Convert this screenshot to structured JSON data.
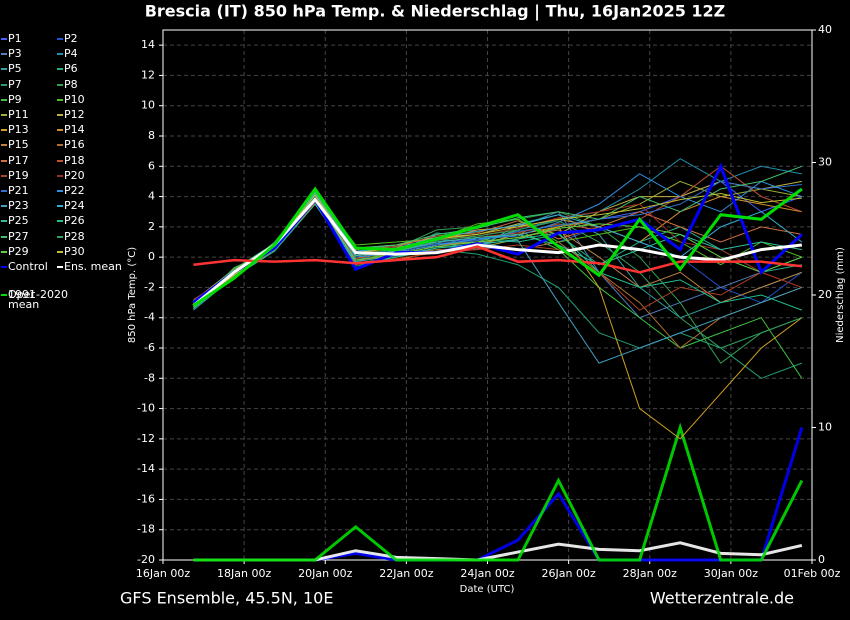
{
  "chart_data": {
    "type": "line",
    "title": "Brescia  (IT)  850 hPa Temp. & Niederschlag | Thu, 16Jan2025 12Z",
    "footer_left": "GFS Ensemble, 45.5N, 10E",
    "footer_right": "Wetterzentrale.de",
    "xlabel": "Date (UTC)",
    "ylabel": "850 hPa Temp. (°C)",
    "y2label": "Niederschlag (mm)",
    "xlim": [
      0,
      16
    ],
    "xticks": [
      {
        "value": 0,
        "label": "16Jan 00z"
      },
      {
        "value": 2,
        "label": "18Jan 00z"
      },
      {
        "value": 4,
        "label": "20Jan 00z"
      },
      {
        "value": 6,
        "label": "22Jan 00z"
      },
      {
        "value": 8,
        "label": "24Jan 00z"
      },
      {
        "value": 10,
        "label": "26Jan 00z"
      },
      {
        "value": 12,
        "label": "28Jan 00z"
      },
      {
        "value": 14,
        "label": "30Jan 00z"
      },
      {
        "value": 16,
        "label": "01Feb 00z"
      }
    ],
    "ylim": [
      -20,
      15
    ],
    "yticks": [
      -20,
      -18,
      -16,
      -14,
      -12,
      -10,
      -8,
      -6,
      -4,
      -2,
      0,
      2,
      4,
      6,
      8,
      10,
      12,
      14
    ],
    "y2lim": [
      0,
      40
    ],
    "y2ticks": [
      0,
      10,
      20,
      30,
      40
    ],
    "grid": true,
    "x": [
      0.75,
      1.75,
      2.75,
      3.75,
      4.75,
      5.75,
      6.75,
      7.75,
      8.75,
      9.75,
      10.75,
      11.75,
      12.75,
      13.75,
      14.75,
      15.75
    ],
    "series": [
      {
        "name": "P1",
        "color": "#4060ff",
        "values": [
          -3,
          -1.2,
          0.5,
          3.6,
          0.2,
          0.5,
          1,
          1.2,
          1.5,
          2,
          2.5,
          3,
          4,
          5,
          3,
          4
        ]
      },
      {
        "name": "P2",
        "color": "#2050d0",
        "values": [
          -3.3,
          -0.8,
          0.9,
          3.9,
          -0.5,
          0,
          0.8,
          1,
          0.5,
          1,
          2,
          1,
          0,
          -2,
          -3,
          -1
        ]
      },
      {
        "name": "P3",
        "color": "#5080c0",
        "values": [
          -2.9,
          -1,
          0.6,
          4,
          0.3,
          0.2,
          1.5,
          1.8,
          2,
          3,
          -1,
          -4,
          -3,
          -2,
          -1,
          0
        ]
      },
      {
        "name": "P4",
        "color": "#2090b0",
        "values": [
          -3.1,
          -1.1,
          0.7,
          3.5,
          -0.2,
          0.5,
          1.2,
          0.8,
          1.8,
          2.5,
          3,
          4.5,
          6.5,
          5,
          6,
          5.5
        ]
      },
      {
        "name": "P5",
        "color": "#30a0a0",
        "values": [
          -3.5,
          -1.3,
          0.4,
          3.7,
          0.5,
          0.8,
          1,
          0.5,
          2.2,
          2.8,
          1.5,
          -2,
          -4,
          -3,
          -2,
          -1
        ]
      },
      {
        "name": "P6",
        "color": "#20b080",
        "values": [
          -3,
          -0.9,
          0.8,
          4.1,
          0.1,
          0.3,
          1.6,
          1.2,
          1,
          1.5,
          -0.5,
          1,
          2,
          0.5,
          -1,
          -0.5
        ]
      },
      {
        "name": "P7",
        "color": "#20a070",
        "values": [
          -3.2,
          -1,
          0.6,
          3.9,
          -0.6,
          0,
          0.5,
          0.2,
          -0.5,
          -2,
          -5,
          -6,
          -5,
          -6,
          -8,
          -7
        ]
      },
      {
        "name": "P8",
        "color": "#30a050",
        "values": [
          -2.8,
          -1.2,
          1,
          4.2,
          0.4,
          0.6,
          1.8,
          2,
          2.5,
          3,
          2,
          0,
          -3,
          -7,
          -5,
          -4
        ]
      },
      {
        "name": "P9",
        "color": "#40c040",
        "values": [
          -3.4,
          -0.7,
          0.5,
          3.6,
          -0.3,
          0.4,
          0.9,
          1,
          1.8,
          0.5,
          -2,
          -4,
          -6,
          -5,
          -4,
          -8
        ]
      },
      {
        "name": "P10",
        "color": "#50c020",
        "values": [
          -3,
          -1.1,
          0.8,
          4.3,
          0.8,
          1,
          1.2,
          2.2,
          2.5,
          1,
          1.5,
          2,
          1,
          -0.5,
          1,
          0
        ]
      },
      {
        "name": "P11",
        "color": "#a0b030",
        "values": [
          -3.1,
          -1,
          0.6,
          3.8,
          0,
          0.2,
          0.7,
          0.6,
          1.2,
          2,
          2.5,
          3.5,
          5,
          4,
          4.5,
          4
        ]
      },
      {
        "name": "P12",
        "color": "#c0b040",
        "values": [
          -3.3,
          -1.2,
          0.9,
          4,
          0.6,
          0.8,
          1.3,
          1.5,
          2.2,
          1.5,
          3,
          4,
          4,
          5,
          4.5,
          5
        ]
      },
      {
        "name": "P13",
        "color": "#d0a020",
        "values": [
          -2.9,
          -0.8,
          0.5,
          3.5,
          -0.4,
          -0.2,
          0.4,
          0.8,
          1.5,
          2,
          -2,
          -10,
          -12,
          -9,
          -6,
          -4
        ]
      },
      {
        "name": "P14",
        "color": "#d09030",
        "values": [
          -3.2,
          -1.3,
          0.7,
          4.4,
          0.2,
          0.6,
          1.1,
          1.8,
          2,
          2.5,
          2,
          1,
          3,
          4,
          3.5,
          3
        ]
      },
      {
        "name": "P15",
        "color": "#c08040",
        "values": [
          -3,
          -1,
          0.6,
          4,
          0.1,
          0.3,
          0.8,
          1,
          1.3,
          1.8,
          0,
          -2,
          -1,
          -3,
          -2,
          -1
        ]
      },
      {
        "name": "P16",
        "color": "#b07030",
        "values": [
          -3.4,
          -1.1,
          0.4,
          3.7,
          -0.2,
          0.1,
          0.5,
          0.6,
          0.5,
          1,
          -1,
          -3,
          -6,
          -4,
          -3,
          -2
        ]
      },
      {
        "name": "P17",
        "color": "#d07040",
        "values": [
          -3.1,
          -0.9,
          0.9,
          4.2,
          0.5,
          0.7,
          1.4,
          1.6,
          2.4,
          1.2,
          2,
          3,
          2,
          1,
          2,
          1.5
        ]
      },
      {
        "name": "P18",
        "color": "#c05030",
        "values": [
          -3,
          -1.2,
          0.7,
          3.9,
          -0.1,
          0.4,
          1,
          1.3,
          1.6,
          2.2,
          1.8,
          2.5,
          4,
          6,
          4,
          3
        ]
      },
      {
        "name": "P19",
        "color": "#b04020",
        "values": [
          -3.2,
          -1,
          0.5,
          3.6,
          -0.5,
          -0.1,
          0.3,
          0.5,
          0.8,
          0.5,
          -1,
          -3.5,
          -2,
          -2.5,
          -1,
          -2
        ]
      },
      {
        "name": "P20",
        "color": "#a03020",
        "values": [
          -2.8,
          -1.1,
          0.8,
          4.1,
          0.3,
          0.5,
          1.2,
          1.4,
          1.9,
          2.6,
          3,
          3.5,
          1,
          0.5,
          -1,
          -2
        ]
      },
      {
        "name": "P21",
        "color": "#3070d0",
        "values": [
          -3.3,
          -1,
          0.6,
          3.8,
          0.2,
          0.4,
          0.9,
          1.1,
          1.7,
          2.1,
          2.5,
          2.8,
          3.5,
          5,
          4.5,
          4.8
        ]
      },
      {
        "name": "P22",
        "color": "#3090e0",
        "values": [
          -3,
          -1.2,
          0.7,
          4,
          0,
          0.3,
          0.8,
          1.2,
          1.4,
          2.3,
          3.5,
          5.5,
          4,
          3,
          5,
          4
        ]
      },
      {
        "name": "P23",
        "color": "#40a0c0",
        "values": [
          -3.1,
          -0.9,
          0.5,
          3.7,
          -0.3,
          0.1,
          0.6,
          0.9,
          1.1,
          -3,
          -7,
          -6,
          -5,
          -4,
          -3,
          -2
        ]
      },
      {
        "name": "P24",
        "color": "#30b0d0",
        "values": [
          -3.2,
          -1.1,
          0.8,
          4.2,
          0.4,
          0.6,
          1.3,
          1.7,
          2.1,
          2.8,
          2,
          1,
          0,
          2,
          3,
          1
        ]
      },
      {
        "name": "P25",
        "color": "#30c0a0",
        "values": [
          -2.9,
          -1,
          0.6,
          3.9,
          0.1,
          0.4,
          1,
          1.3,
          1.5,
          0.8,
          -0.5,
          0.5,
          1.5,
          0.5,
          1,
          0.5
        ]
      },
      {
        "name": "P26",
        "color": "#20c090",
        "values": [
          -3.4,
          -1.3,
          0.4,
          3.5,
          -0.4,
          0,
          0.6,
          0.8,
          1.2,
          1.6,
          -1,
          -2,
          -1.5,
          -3,
          -2.5,
          -3.5
        ]
      },
      {
        "name": "P27",
        "color": "#40c070",
        "values": [
          -3,
          -0.8,
          0.9,
          4.3,
          0.6,
          0.8,
          1.5,
          1.9,
          2.6,
          3,
          2.5,
          4,
          3,
          4.5,
          5,
          6
        ]
      },
      {
        "name": "P28",
        "color": "#30a060",
        "values": [
          -3.1,
          -1.1,
          0.7,
          4,
          0.2,
          0.5,
          1.1,
          1.4,
          1.8,
          2.4,
          1,
          -1,
          -4,
          -6,
          -5,
          -4
        ]
      },
      {
        "name": "P29",
        "color": "#60d040",
        "values": [
          -3.3,
          -1,
          0.5,
          3.8,
          -0.2,
          0.2,
          0.7,
          1,
          1.3,
          1.9,
          2.2,
          2,
          1.5,
          0,
          -1,
          0
        ]
      },
      {
        "name": "P30",
        "color": "#c0c030",
        "values": [
          -3,
          -1.2,
          0.8,
          4.1,
          0.3,
          0.6,
          1.2,
          1.5,
          2,
          2.5,
          2.8,
          3.2,
          3.8,
          4.2,
          3.6,
          3.9
        ]
      },
      {
        "name": "Control",
        "color": "#0000ff",
        "width": 3,
        "values": [
          -3,
          -1,
          0.6,
          3.8,
          -0.8,
          0.3,
          0.3,
          0.9,
          0.2,
          1.6,
          1.8,
          2.5,
          0.5,
          6,
          -1,
          1.5
        ],
        "precip": [
          0,
          0,
          0,
          0,
          0.5,
          0,
          0,
          0,
          1.5,
          5,
          0,
          0,
          0,
          0,
          0,
          10
        ]
      },
      {
        "name": "Ens. mean",
        "color": "#ffffff",
        "width": 3,
        "values": [
          -3.2,
          -1,
          0.8,
          3.8,
          0.3,
          0.2,
          0.3,
          0.8,
          0.5,
          0.3,
          0.8,
          0.5,
          0,
          -0.2,
          0.5,
          0.8
        ],
        "precip": [
          0,
          0,
          0,
          0,
          0.7,
          0.2,
          0.1,
          0,
          0.6,
          1.2,
          0.8,
          0.7,
          1.3,
          0.5,
          0.4,
          1.1
        ]
      },
      {
        "name": "1991-2020 mean",
        "color": "#ff3333",
        "width": 2.5,
        "values": [
          -0.5,
          -0.2,
          -0.3,
          -0.2,
          -0.4,
          -0.2,
          0,
          0.7,
          -0.3,
          -0.2,
          -0.4,
          -1,
          -0.3,
          -0.3,
          -0.3,
          -0.6
        ]
      },
      {
        "name": "Oper",
        "color": "#00dd00",
        "width": 3,
        "values": [
          -3.2,
          -1.4,
          0.8,
          4.5,
          0.6,
          0.5,
          1.2,
          2,
          2.8,
          0.7,
          -1.2,
          2.5,
          -0.8,
          2.8,
          2.5,
          4.5
        ],
        "precip": [
          0,
          0,
          0,
          0,
          2.5,
          0,
          0,
          0,
          0,
          6,
          0,
          0,
          10,
          0,
          0,
          6
        ]
      }
    ]
  }
}
